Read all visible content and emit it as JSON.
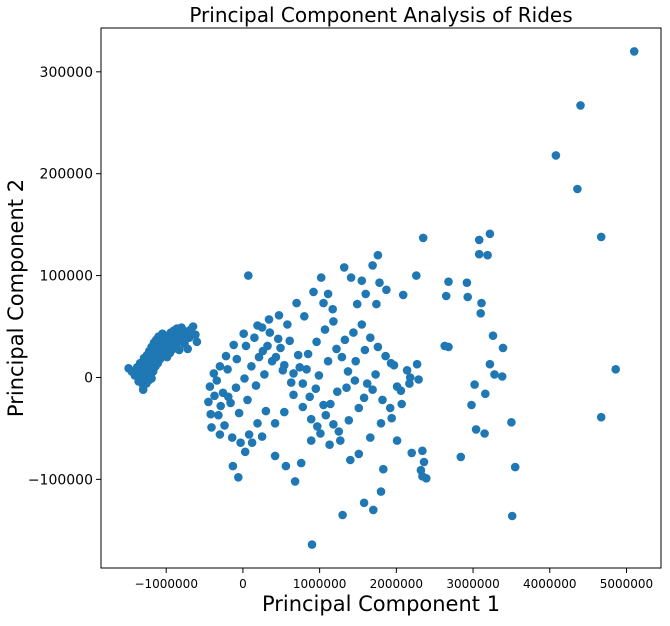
{
  "chart_data": {
    "type": "scatter",
    "title": "Principal Component Analysis of Rides",
    "xlabel": "Principal Component 1",
    "ylabel": "Principal Component 2",
    "xlim": [
      -1850000,
      5450000
    ],
    "ylim": [
      -187000,
      343000
    ],
    "x_ticks": [
      {
        "value": -1000000,
        "label": "−1000000"
      },
      {
        "value": 0,
        "label": "0"
      },
      {
        "value": 1000000,
        "label": "1000000"
      },
      {
        "value": 2000000,
        "label": "2000000"
      },
      {
        "value": 3000000,
        "label": "3000000"
      },
      {
        "value": 4000000,
        "label": "4000000"
      },
      {
        "value": 5000000,
        "label": "5000000"
      }
    ],
    "y_ticks": [
      {
        "value": -100000,
        "label": "−100000"
      },
      {
        "value": 0,
        "label": "0"
      },
      {
        "value": 100000,
        "label": "100000"
      },
      {
        "value": 200000,
        "label": "200000"
      },
      {
        "value": 300000,
        "label": "300000"
      }
    ],
    "grid": false,
    "legend": "none",
    "marker_color": "#1f77b4",
    "series": [
      {
        "points": [
          [
            5100000,
            320000
          ],
          [
            4400000,
            267000
          ],
          [
            4080000,
            218000
          ],
          [
            4360000,
            185000
          ],
          [
            4670000,
            138000
          ],
          [
            4860000,
            8000
          ],
          [
            4670000,
            -39000
          ],
          [
            3550000,
            -88000
          ],
          [
            3510000,
            -136000
          ],
          [
            3500000,
            -44000
          ],
          [
            3220000,
            141000
          ],
          [
            3080000,
            135000
          ],
          [
            3190000,
            120000
          ],
          [
            3080000,
            121000
          ],
          [
            2920000,
            93000
          ],
          [
            2930000,
            79000
          ],
          [
            3110000,
            73000
          ],
          [
            3100000,
            63000
          ],
          [
            3260000,
            41000
          ],
          [
            3390000,
            29000
          ],
          [
            3220000,
            13000
          ],
          [
            3280000,
            3000
          ],
          [
            3380000,
            1000
          ],
          [
            3020000,
            -7000
          ],
          [
            3160000,
            -16000
          ],
          [
            2980000,
            -27000
          ],
          [
            3040000,
            -51000
          ],
          [
            3150000,
            -55000
          ],
          [
            2840000,
            -78000
          ],
          [
            2350000,
            137000
          ],
          [
            2680000,
            94000
          ],
          [
            2650000,
            80000
          ],
          [
            2260000,
            100000
          ],
          [
            2090000,
            81000
          ],
          [
            2680000,
            30000
          ],
          [
            2630000,
            31000
          ],
          [
            2340000,
            -72000
          ],
          [
            2360000,
            -83000
          ],
          [
            2320000,
            -91000
          ],
          [
            2390000,
            -99000
          ],
          [
            2340000,
            -97000
          ],
          [
            2200000,
            -74000
          ],
          [
            2010000,
            -62000
          ],
          [
            1830000,
            -90000
          ],
          [
            1800000,
            -112000
          ],
          [
            1580000,
            -123000
          ],
          [
            1700000,
            -130000
          ],
          [
            1300000,
            -135000
          ],
          [
            900000,
            -164000
          ],
          [
            1760000,
            120000
          ],
          [
            1690000,
            110000
          ],
          [
            1550000,
            95000
          ],
          [
            1320000,
            108000
          ],
          [
            1410000,
            98000
          ],
          [
            1600000,
            82000
          ],
          [
            1780000,
            93000
          ],
          [
            1870000,
            86000
          ],
          [
            1740000,
            72000
          ],
          [
            1490000,
            72000
          ],
          [
            1170000,
            67000
          ],
          [
            1050000,
            73000
          ],
          [
            920000,
            84000
          ],
          [
            1020000,
            98000
          ],
          [
            1110000,
            82000
          ],
          [
            800000,
            60000
          ],
          [
            700000,
            73000
          ],
          [
            580000,
            52000
          ],
          [
            470000,
            61000
          ],
          [
            340000,
            57000
          ],
          [
            250000,
            49000
          ],
          [
            190000,
            51000
          ],
          [
            70000,
            100000
          ],
          [
            10000,
            43000
          ],
          [
            -120000,
            32000
          ],
          [
            -220000,
            21000
          ],
          [
            -300000,
            11000
          ],
          [
            -380000,
            4000
          ],
          [
            -430000,
            -9000
          ],
          [
            -450000,
            -24000
          ],
          [
            -420000,
            -36000
          ],
          [
            -410000,
            -49000
          ],
          [
            -300000,
            -56000
          ],
          [
            -130000,
            -87000
          ],
          [
            -60000,
            -98000
          ],
          [
            30000,
            -73000
          ],
          [
            120000,
            -64000
          ],
          [
            250000,
            -58000
          ],
          [
            420000,
            -77000
          ],
          [
            560000,
            -87000
          ],
          [
            680000,
            -102000
          ],
          [
            760000,
            -84000
          ],
          [
            890000,
            -62000
          ],
          [
            970000,
            -48000
          ],
          [
            1080000,
            -37000
          ],
          [
            1140000,
            -26000
          ],
          [
            1230000,
            -14000
          ],
          [
            1350000,
            -10000
          ],
          [
            1460000,
            -3000
          ],
          [
            1580000,
            -20000
          ],
          [
            1730000,
            3000
          ],
          [
            1930000,
            14000
          ],
          [
            2140000,
            7000
          ],
          [
            2290000,
            -2000
          ],
          [
            2170000,
            -6000
          ],
          [
            2070000,
            -26000
          ],
          [
            1940000,
            -40000
          ],
          [
            1800000,
            -45000
          ],
          [
            1660000,
            -59000
          ],
          [
            1510000,
            -75000
          ],
          [
            1400000,
            -81000
          ],
          [
            1270000,
            -62000
          ],
          [
            1180000,
            -46000
          ],
          [
            1050000,
            -27000
          ],
          [
            950000,
            -11000
          ],
          [
            830000,
            8000
          ],
          [
            720000,
            22000
          ],
          [
            610000,
            36000
          ],
          [
            490000,
            29000
          ],
          [
            380000,
            16000
          ],
          [
            280000,
            3000
          ],
          [
            170000,
            -8000
          ],
          [
            60000,
            -22000
          ],
          [
            -50000,
            -35000
          ],
          [
            -160000,
            -25000
          ],
          [
            -260000,
            -15000
          ],
          [
            -340000,
            -3000
          ],
          [
            -200000,
            8000
          ],
          [
            -80000,
            18000
          ],
          [
            40000,
            31000
          ],
          [
            150000,
            39000
          ],
          [
            260000,
            26000
          ],
          [
            350000,
            44000
          ],
          [
            460000,
            38000
          ],
          [
            540000,
            12000
          ],
          [
            660000,
            4000
          ],
          [
            780000,
            -6000
          ],
          [
            870000,
            -19000
          ],
          [
            990000,
            2000
          ],
          [
            1110000,
            16000
          ],
          [
            1220000,
            28000
          ],
          [
            1330000,
            37000
          ],
          [
            1440000,
            44000
          ],
          [
            1550000,
            52000
          ],
          [
            1660000,
            39000
          ],
          [
            1760000,
            30000
          ],
          [
            1860000,
            21000
          ],
          [
            1970000,
            12000
          ],
          [
            2060000,
            -13000
          ],
          [
            2180000,
            0
          ],
          [
            2270000,
            13000
          ],
          [
            1620000,
            -6000
          ],
          [
            1510000,
            -30000
          ],
          [
            1380000,
            -42000
          ],
          [
            1250000,
            -53000
          ],
          [
            1130000,
            -66000
          ],
          [
            1010000,
            -55000
          ],
          [
            890000,
            -41000
          ],
          [
            780000,
            -29000
          ],
          [
            660000,
            -17000
          ],
          [
            540000,
            -34000
          ],
          [
            420000,
            -45000
          ],
          [
            300000,
            -33000
          ],
          [
            190000,
            -45000
          ],
          [
            80000,
            -56000
          ],
          [
            -30000,
            -64000
          ],
          [
            -140000,
            -59000
          ],
          [
            -240000,
            -47000
          ],
          [
            -320000,
            -37000
          ],
          [
            -370000,
            -18000
          ],
          [
            -290000,
            -28000
          ],
          [
            -190000,
            -19000
          ],
          [
            -90000,
            -10000
          ],
          [
            20000,
            -1000
          ],
          [
            110000,
            11000
          ],
          [
            210000,
            20000
          ],
          [
            320000,
            31000
          ],
          [
            430000,
            20000
          ],
          [
            520000,
            7000
          ],
          [
            630000,
            -5000
          ],
          [
            740000,
            10000
          ],
          [
            850000,
            23000
          ],
          [
            960000,
            35000
          ],
          [
            1070000,
            47000
          ],
          [
            1180000,
            55000
          ],
          [
            1290000,
            20000
          ],
          [
            1370000,
            6000
          ],
          [
            1470000,
            16000
          ],
          [
            1590000,
            27000
          ],
          [
            1690000,
            -12000
          ],
          [
            1820000,
            -22000
          ],
          [
            1920000,
            -30000
          ],
          [
            2010000,
            -9000
          ],
          [
            -1490000,
            9000
          ],
          [
            -1450000,
            6000
          ],
          [
            -1410000,
            2000
          ],
          [
            -1380000,
            10000
          ],
          [
            -1360000,
            -4000
          ],
          [
            -1340000,
            14000
          ],
          [
            -1320000,
            5000
          ],
          [
            -1300000,
            -8000
          ],
          [
            -1290000,
            19000
          ],
          [
            -1280000,
            0
          ],
          [
            -1270000,
            12000
          ],
          [
            -1260000,
            -6000
          ],
          [
            -1250000,
            22000
          ],
          [
            -1240000,
            8000
          ],
          [
            -1230000,
            -3000
          ],
          [
            -1220000,
            26000
          ],
          [
            -1210000,
            15000
          ],
          [
            -1200000,
            3000
          ],
          [
            -1190000,
            30000
          ],
          [
            -1180000,
            18000
          ],
          [
            -1170000,
            6000
          ],
          [
            -1160000,
            34000
          ],
          [
            -1150000,
            22000
          ],
          [
            -1140000,
            11000
          ],
          [
            -1130000,
            37000
          ],
          [
            -1120000,
            25000
          ],
          [
            -1110000,
            14000
          ],
          [
            -1100000,
            40000
          ],
          [
            -1090000,
            29000
          ],
          [
            -1080000,
            18000
          ],
          [
            -1070000,
            32000
          ],
          [
            -1060000,
            22000
          ],
          [
            -1050000,
            43000
          ],
          [
            -1040000,
            35000
          ],
          [
            -1030000,
            26000
          ],
          [
            -1020000,
            38000
          ],
          [
            -1000000,
            30000
          ],
          [
            -980000,
            41000
          ],
          [
            -960000,
            34000
          ],
          [
            -940000,
            44000
          ],
          [
            -920000,
            37000
          ],
          [
            -900000,
            46000
          ],
          [
            -880000,
            40000
          ],
          [
            -860000,
            48000
          ],
          [
            -840000,
            43000
          ],
          [
            -820000,
            36000
          ],
          [
            -800000,
            49000
          ],
          [
            -780000,
            41000
          ],
          [
            -760000,
            33000
          ],
          [
            -740000,
            45000
          ],
          [
            -720000,
            28000
          ],
          [
            -700000,
            39000
          ],
          [
            -680000,
            47000
          ],
          [
            -650000,
            50000
          ],
          [
            -620000,
            42000
          ],
          [
            -600000,
            35000
          ],
          [
            -1300000,
            -12000
          ],
          [
            -1270000,
            -2000
          ],
          [
            -1330000,
            9000
          ],
          [
            -1250000,
            4000
          ],
          [
            -1210000,
            9000
          ],
          [
            -1180000,
            12000
          ],
          [
            -1150000,
            16000
          ],
          [
            -1190000,
            -1000
          ],
          [
            -1230000,
            16000
          ],
          [
            -1110000,
            20000
          ],
          [
            -1070000,
            24000
          ],
          [
            -1020000,
            27000
          ],
          [
            -990000,
            20000
          ],
          [
            -950000,
            24000
          ],
          [
            -910000,
            28000
          ],
          [
            -870000,
            31000
          ],
          [
            -830000,
            27000
          ],
          [
            -1360000,
            4000
          ],
          [
            -1310000,
            1000
          ],
          [
            -1260000,
            10000
          ]
        ]
      }
    ]
  }
}
